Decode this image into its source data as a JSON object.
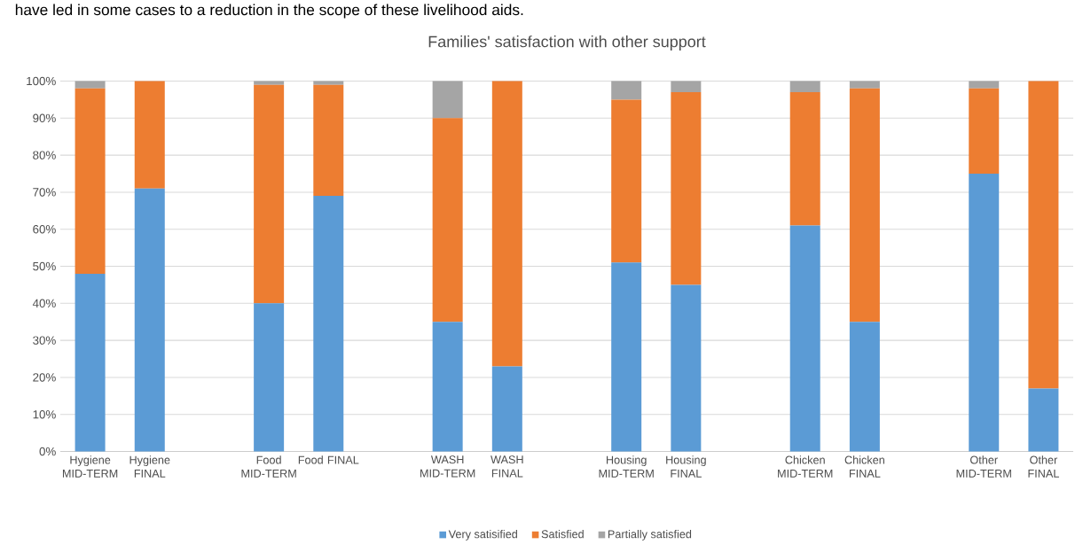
{
  "chart_data": {
    "type": "bar",
    "stacked": true,
    "title": "Families' satisfaction with other support",
    "annotations": [
      "have led in some cases to a reduction in the scope of these livelihood aids."
    ],
    "categories": [
      "Hygiene MID-TERM",
      "Hygiene FINAL",
      null,
      "Food MID-TERM",
      "Food FINAL",
      null,
      "WASH MID-TERM",
      "WASH FINAL",
      null,
      "Housing MID-TERM",
      "Housing FINAL",
      null,
      "Chicken MID-TERM",
      "Chicken FINAL",
      null,
      "Other MID-TERM",
      "Other FINAL"
    ],
    "series": [
      {
        "name": "Very satisified",
        "color": "#5b9bd5",
        "values": [
          48,
          71,
          null,
          40,
          69,
          null,
          35,
          23,
          null,
          51,
          45,
          null,
          61,
          35,
          null,
          75,
          17
        ]
      },
      {
        "name": "Satisfied",
        "color": "#ed7d31",
        "values": [
          50,
          29,
          null,
          59,
          30,
          null,
          55,
          77,
          null,
          44,
          52,
          null,
          36,
          63,
          null,
          23,
          83
        ]
      },
      {
        "name": "Partially satisfied",
        "color": "#a5a5a5",
        "values": [
          2,
          0,
          null,
          1,
          1,
          null,
          10,
          0,
          null,
          5,
          3,
          null,
          3,
          2,
          null,
          2,
          0
        ]
      }
    ],
    "ylim": [
      0,
      100
    ],
    "yticks": [
      {
        "value": 0,
        "label": "0%"
      },
      {
        "value": 10,
        "label": "10%"
      },
      {
        "value": 20,
        "label": "20%"
      },
      {
        "value": 30,
        "label": "30%"
      },
      {
        "value": 40,
        "label": "40%"
      },
      {
        "value": 50,
        "label": "50%"
      },
      {
        "value": 60,
        "label": "60%"
      },
      {
        "value": 70,
        "label": "70%"
      },
      {
        "value": 80,
        "label": "80%"
      },
      {
        "value": 90,
        "label": "90%"
      },
      {
        "value": 100,
        "label": "100%"
      }
    ],
    "grid": "y",
    "legend": "bottom"
  }
}
